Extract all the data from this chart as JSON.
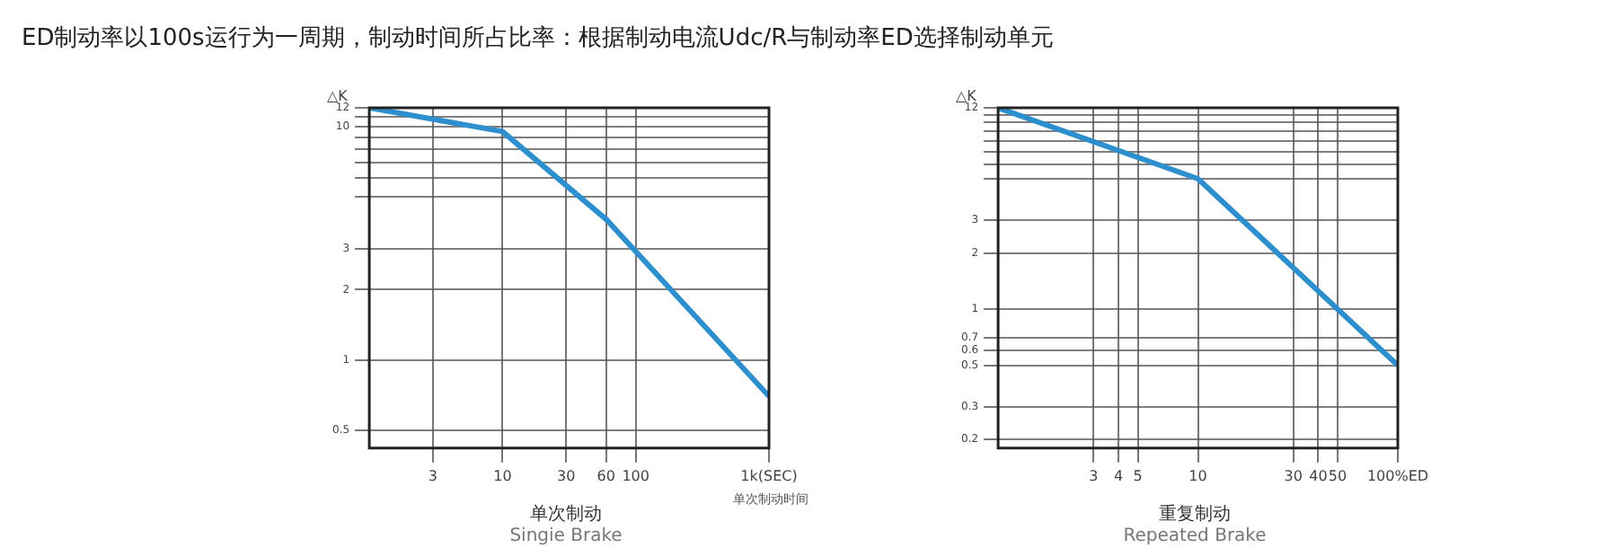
{
  "chart_data": [
    {
      "type": "other",
      "title": "ED制动率以100s运行为一周期，制动时间所占比率：根据制动电流Udc/R与制动率ED选择制动单元"
    },
    {
      "type": "line",
      "title": "单次制动",
      "subtitle": "Singie Brake",
      "ylabel": "△K",
      "annotations": [
        "单次制动时间"
      ],
      "log": "xy",
      "grid": true,
      "legend": false,
      "marker": "none",
      "line_style": "solid",
      "x": [
        1,
        10,
        60,
        1000
      ],
      "series": [
        {
          "color": "#2e8fce",
          "values": [
            12,
            9.5,
            4,
            0.7
          ]
        }
      ],
      "xlim": [
        1,
        1000
      ],
      "xticks": [
        3,
        10,
        30,
        60,
        100,
        {
          "value": 1000,
          "label": "1k(SEC)"
        }
      ],
      "ylim": [
        0.42,
        12
      ],
      "yticks": [
        0.5,
        1,
        2,
        3,
        {
          "value": 5,
          "label": null
        },
        {
          "value": 6,
          "label": null
        },
        {
          "value": 7,
          "label": null
        },
        {
          "value": 8,
          "label": null
        },
        {
          "value": 9,
          "label": null
        },
        10,
        {
          "value": 11,
          "label": null
        },
        12
      ]
    },
    {
      "type": "line",
      "title": "重复制动",
      "subtitle": "Repeated Brake",
      "ylabel": "△K",
      "log": "xy",
      "grid": true,
      "legend": false,
      "marker": "none",
      "line_style": "solid",
      "x": [
        1,
        10,
        100
      ],
      "series": [
        {
          "color": "#2e8fce",
          "values": [
            12,
            5,
            0.5
          ]
        }
      ],
      "xlim": [
        1,
        100
      ],
      "xticks": [
        3,
        4,
        5,
        10,
        30,
        40,
        50,
        {
          "value": 100,
          "label": "100%ED"
        }
      ],
      "ylim": [
        0.18,
        12
      ],
      "yticks": [
        0.2,
        0.3,
        0.5,
        0.6,
        0.7,
        1,
        2,
        3,
        {
          "value": 5,
          "label": null
        },
        {
          "value": 6,
          "label": null
        },
        {
          "value": 7,
          "label": null
        },
        {
          "value": 8,
          "label": null
        },
        {
          "value": 9,
          "label": null
        },
        {
          "value": 10,
          "label": null
        },
        {
          "value": 11,
          "label": null
        },
        12
      ]
    }
  ]
}
